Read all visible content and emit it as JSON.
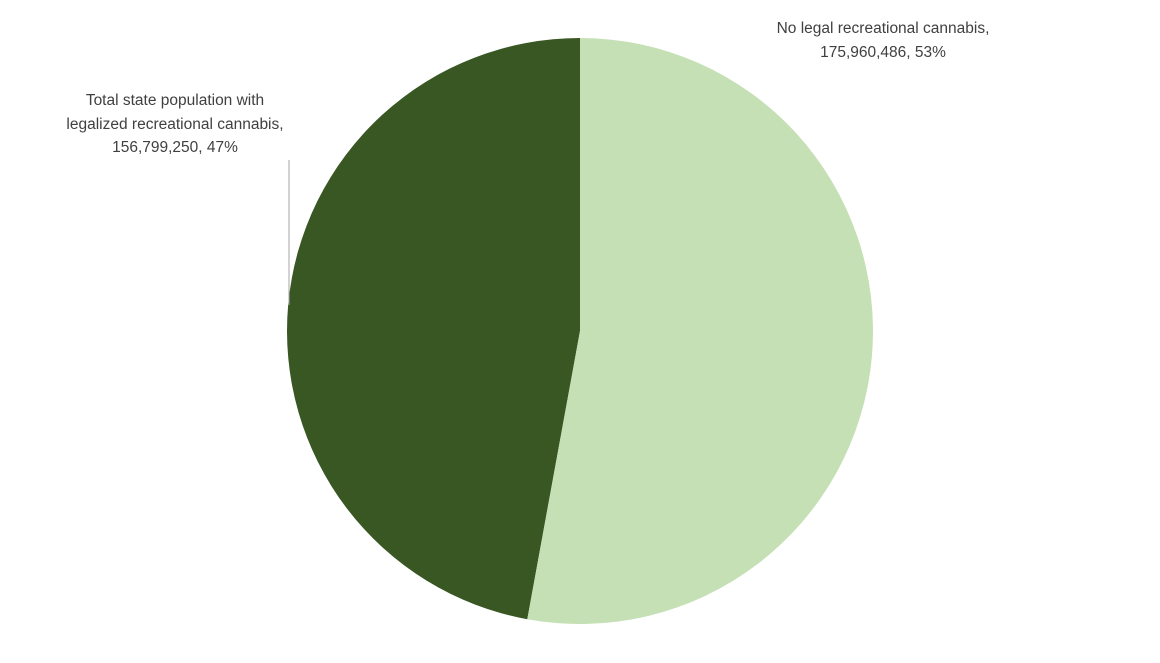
{
  "chart_data": {
    "type": "pie",
    "values": [
      175960486,
      156799250
    ],
    "value_labels": [
      "No legal recreational cannabis, 175,960,486, 53%",
      "Total state population with legalized recreational cannabis, 156,799,250, 47%"
    ],
    "colors": [
      "#c5e0b4",
      "#385723"
    ]
  }
}
